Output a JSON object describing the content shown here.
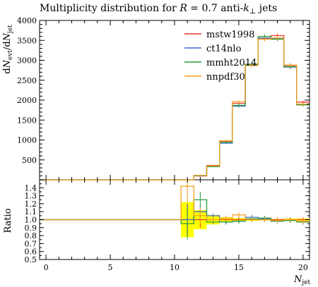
{
  "chart_data": [
    {
      "type": "histogram-step",
      "title": "Multiplicity distribution for R = 0.7 anti-k⊥ jets",
      "title_parts": {
        "prefix": "Multiplicity distribution for ",
        "R": "R",
        "eq": " = 0.7 anti-",
        "k": "k",
        "sub": "⊥",
        "suffix": " jets"
      },
      "ylabel": "dNevt/dNjet",
      "ylabel_parts": {
        "d1": "d",
        "N1": "N",
        "sub1": "evt",
        "slash": "/d",
        "N2": "N",
        "sub2": "jet"
      },
      "xlim": [
        -0.5,
        20.5
      ],
      "ylim": [
        0,
        4000
      ],
      "yticks": [
        500,
        1000,
        1500,
        2000,
        2500,
        3000,
        3500,
        4000
      ],
      "legend_position": "top-right",
      "bins": [
        10.5,
        11.5,
        12.5,
        13.5,
        14.5,
        15.5,
        16.5,
        17.5,
        18.5,
        19.5,
        20.5
      ],
      "series": [
        {
          "name": "mstw1998",
          "color": "#e8352a",
          "values": [
            0,
            95,
            360,
            970,
            1920,
            2890,
            3540,
            3620,
            2870,
            1950
          ]
        },
        {
          "name": "ct14nlo",
          "color": "#3c6fd6",
          "values": [
            0,
            100,
            340,
            920,
            1850,
            2900,
            3560,
            3540,
            2830,
            1890
          ]
        },
        {
          "name": "mmht2014",
          "color": "#2a9a3a",
          "values": [
            0,
            110,
            330,
            940,
            1870,
            2900,
            3600,
            3530,
            2840,
            1880
          ]
        },
        {
          "name": "nnpdf30",
          "color": "#f5a11c",
          "values": [
            0,
            105,
            350,
            980,
            1960,
            2870,
            3530,
            3560,
            2880,
            1900
          ]
        }
      ]
    },
    {
      "type": "ratio-step",
      "ylabel": "Ratio",
      "xlabel": "Njet",
      "xlabel_parts": {
        "N": "N",
        "sub": "jet"
      },
      "xlim": [
        -0.5,
        20.5
      ],
      "ylim": [
        0.5,
        1.5
      ],
      "yticks": [
        0.5,
        0.6,
        0.7,
        0.8,
        0.9,
        1.0,
        1.1,
        1.2,
        1.3,
        1.4
      ],
      "xticks": [
        0,
        5,
        10,
        15,
        20
      ],
      "band": {
        "color": "#ffff00",
        "bins": [
          10.5,
          11.5,
          12.5,
          13.5,
          14.5,
          15.5,
          16.5,
          17.5,
          18.5,
          19.5,
          20.5
        ],
        "lo": [
          0.78,
          0.88,
          0.94,
          0.97,
          0.98,
          0.985,
          0.99,
          0.99,
          0.985,
          0.985
        ],
        "hi": [
          1.22,
          1.12,
          1.06,
          1.03,
          1.02,
          1.015,
          1.01,
          1.01,
          1.015,
          1.015
        ]
      },
      "series": [
        {
          "name": "mstw1998",
          "color": "#e8352a",
          "values": [
            1.0,
            1.0,
            1.0,
            1.0,
            1.0,
            1.0,
            1.0,
            1.0,
            1.0,
            1.0
          ]
        },
        {
          "name": "ct14nlo",
          "color": "#3c6fd6",
          "values": [
            1.0,
            1.1,
            1.05,
            0.97,
            0.98,
            1.03,
            1.01,
            0.98,
            0.99,
            0.97
          ]
        },
        {
          "name": "mmht2014",
          "color": "#2a9a3a",
          "values": [
            0.95,
            1.25,
            0.97,
            0.97,
            0.98,
            1.01,
            1.02,
            0.98,
            0.99,
            0.97
          ]
        },
        {
          "name": "nnpdf30",
          "color": "#f5a11c",
          "values": [
            1.42,
            1.05,
            1.0,
            1.02,
            1.06,
            1.0,
            1.0,
            0.99,
            1.0,
            0.98
          ]
        }
      ]
    }
  ]
}
